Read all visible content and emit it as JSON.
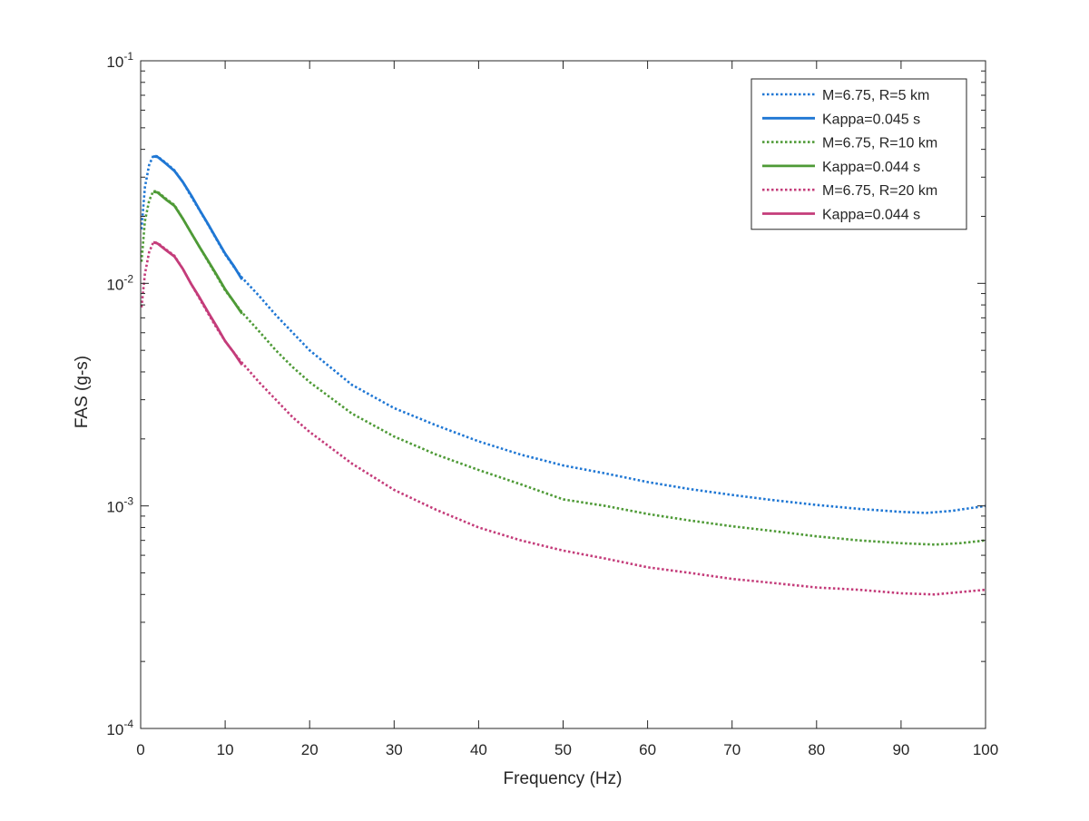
{
  "chart_data": {
    "type": "line",
    "title": "",
    "xlabel": "Frequency (Hz)",
    "ylabel": "FAS (g-s)",
    "xlim": [
      0,
      100
    ],
    "ylim": [
      0.0001,
      0.1
    ],
    "yscale": "log",
    "grid": false,
    "legend_position": "top-right",
    "x_ticks": [
      0,
      10,
      20,
      30,
      40,
      50,
      60,
      70,
      80,
      90,
      100
    ],
    "y_ticks": [
      {
        "value": 0.0001,
        "base": "10",
        "exp": "-4"
      },
      {
        "value": 0.001,
        "base": "10",
        "exp": "-3"
      },
      {
        "value": 0.01,
        "base": "10",
        "exp": "-2"
      },
      {
        "value": 0.1,
        "base": "10",
        "exp": "-1"
      }
    ],
    "series": [
      {
        "name": "M=6.75, R=5 km",
        "style": "dotted",
        "color": "#1f77d4",
        "points": [
          [
            0.1,
            0.0175
          ],
          [
            0.5,
            0.027
          ],
          [
            1,
            0.034
          ],
          [
            1.5,
            0.0375
          ],
          [
            2,
            0.0372
          ],
          [
            3,
            0.0347
          ],
          [
            4,
            0.0322
          ],
          [
            5,
            0.0285
          ],
          [
            6,
            0.0245
          ],
          [
            7,
            0.0212
          ],
          [
            8,
            0.0183
          ],
          [
            9,
            0.0157
          ],
          [
            10,
            0.0135
          ],
          [
            11,
            0.0119
          ],
          [
            12,
            0.0106
          ],
          [
            14,
            0.0088
          ],
          [
            16,
            0.0072
          ],
          [
            18,
            0.006
          ],
          [
            20,
            0.005
          ],
          [
            25,
            0.0035
          ],
          [
            30,
            0.00275
          ],
          [
            35,
            0.0023
          ],
          [
            40,
            0.00195
          ],
          [
            45,
            0.0017
          ],
          [
            50,
            0.00152
          ],
          [
            55,
            0.0014
          ],
          [
            60,
            0.00128
          ],
          [
            65,
            0.00119
          ],
          [
            70,
            0.00112
          ],
          [
            75,
            0.00106
          ],
          [
            80,
            0.00101
          ],
          [
            85,
            0.00097
          ],
          [
            90,
            0.00094
          ],
          [
            93,
            0.00093
          ],
          [
            96,
            0.00095
          ],
          [
            100,
            0.001
          ]
        ]
      },
      {
        "name": "Kappa=0.045 s",
        "style": "solid",
        "color": "#1f77d4",
        "points": [
          [
            1.5,
            0.0372
          ],
          [
            2,
            0.037
          ],
          [
            3,
            0.0345
          ],
          [
            4,
            0.032
          ],
          [
            5,
            0.0285
          ],
          [
            6,
            0.0248
          ],
          [
            7,
            0.0213
          ],
          [
            8,
            0.0184
          ],
          [
            9,
            0.0158
          ],
          [
            10,
            0.0136
          ],
          [
            11,
            0.012
          ],
          [
            12,
            0.0104
          ]
        ]
      },
      {
        "name": "M=6.75, R=10 km",
        "style": "dotted",
        "color": "#4e9a36",
        "points": [
          [
            0.1,
            0.0125
          ],
          [
            0.5,
            0.019
          ],
          [
            1,
            0.0235
          ],
          [
            1.5,
            0.026
          ],
          [
            2,
            0.0258
          ],
          [
            3,
            0.024
          ],
          [
            4,
            0.0225
          ],
          [
            5,
            0.0195
          ],
          [
            6,
            0.0168
          ],
          [
            7,
            0.0145
          ],
          [
            8,
            0.0125
          ],
          [
            9,
            0.0108
          ],
          [
            10,
            0.0093
          ],
          [
            11,
            0.0083
          ],
          [
            12,
            0.0074
          ],
          [
            14,
            0.0061
          ],
          [
            16,
            0.005
          ],
          [
            18,
            0.0042
          ],
          [
            20,
            0.0036
          ],
          [
            25,
            0.0026
          ],
          [
            30,
            0.00205
          ],
          [
            35,
            0.0017
          ],
          [
            40,
            0.00145
          ],
          [
            45,
            0.00125
          ],
          [
            50,
            0.00107
          ],
          [
            55,
            0.001
          ],
          [
            60,
            0.00092
          ],
          [
            65,
            0.00086
          ],
          [
            70,
            0.00081
          ],
          [
            75,
            0.00077
          ],
          [
            80,
            0.00073
          ],
          [
            85,
            0.0007
          ],
          [
            90,
            0.00068
          ],
          [
            94,
            0.00067
          ],
          [
            97,
            0.00068
          ],
          [
            100,
            0.0007
          ]
        ]
      },
      {
        "name": "Kappa=0.044 s",
        "style": "solid",
        "color": "#4e9a36",
        "points": [
          [
            1.5,
            0.0258
          ],
          [
            2,
            0.0256
          ],
          [
            3,
            0.0238
          ],
          [
            4,
            0.0223
          ],
          [
            5,
            0.0195
          ],
          [
            6,
            0.0168
          ],
          [
            7,
            0.0145
          ],
          [
            8,
            0.0126
          ],
          [
            9,
            0.0109
          ],
          [
            10,
            0.0094
          ],
          [
            11,
            0.0083
          ],
          [
            12,
            0.0073
          ]
        ]
      },
      {
        "name": "M=6.75, R=20 km",
        "style": "dotted",
        "color": "#c43c7a",
        "points": [
          [
            0.1,
            0.0078
          ],
          [
            0.5,
            0.011
          ],
          [
            1,
            0.0138
          ],
          [
            1.5,
            0.0153
          ],
          [
            2,
            0.0152
          ],
          [
            3,
            0.0142
          ],
          [
            4,
            0.0133
          ],
          [
            5,
            0.0116
          ],
          [
            6,
            0.0099
          ],
          [
            7,
            0.0085
          ],
          [
            8,
            0.0073
          ],
          [
            9,
            0.0063
          ],
          [
            10,
            0.0055
          ],
          [
            11,
            0.0049
          ],
          [
            12,
            0.0044
          ],
          [
            14,
            0.0036
          ],
          [
            16,
            0.003
          ],
          [
            18,
            0.0025
          ],
          [
            20,
            0.00215
          ],
          [
            25,
            0.00155
          ],
          [
            30,
            0.00118
          ],
          [
            35,
            0.00096
          ],
          [
            40,
            0.0008
          ],
          [
            45,
            0.0007
          ],
          [
            50,
            0.00063
          ],
          [
            55,
            0.00058
          ],
          [
            60,
            0.00053
          ],
          [
            65,
            0.0005
          ],
          [
            70,
            0.00047
          ],
          [
            75,
            0.00045
          ],
          [
            80,
            0.00043
          ],
          [
            85,
            0.00042
          ],
          [
            90,
            0.000405
          ],
          [
            94,
            0.0004
          ],
          [
            97,
            0.00041
          ],
          [
            100,
            0.00042
          ]
        ]
      },
      {
        "name": "Kappa=0.044 s",
        "style": "solid",
        "color": "#c43c7a",
        "points": [
          [
            1.5,
            0.0153
          ],
          [
            2,
            0.0151
          ],
          [
            3,
            0.0141
          ],
          [
            4,
            0.0132
          ],
          [
            5,
            0.0116
          ],
          [
            6,
            0.0099
          ],
          [
            7,
            0.0086
          ],
          [
            8,
            0.0074
          ],
          [
            9,
            0.0064
          ],
          [
            10,
            0.0055
          ],
          [
            11,
            0.0049
          ],
          [
            12,
            0.0043
          ]
        ]
      }
    ]
  }
}
